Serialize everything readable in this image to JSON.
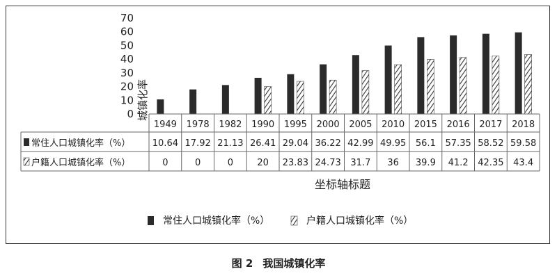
{
  "caption": {
    "number": "图 2",
    "text": "我国城镇化率"
  },
  "chart_data": {
    "type": "bar",
    "title": "",
    "ylabel": "城镇化率",
    "xlabel": "坐标轴标题",
    "ylim": [
      0,
      70
    ],
    "yticks": [
      0,
      10,
      20,
      30,
      40,
      50,
      60,
      70
    ],
    "grid": false,
    "legend_position": "bottom",
    "categories": [
      "1949",
      "1978",
      "1982",
      "1990",
      "1995",
      "2000",
      "2005",
      "2010",
      "2015",
      "2016",
      "2017",
      "2018"
    ],
    "series": [
      {
        "name": "常住人口城镇化率（%）",
        "display_values": [
          "10.64",
          "17.92",
          "21.13",
          "26.41",
          "29.04",
          "36.22",
          "42.99",
          "49.95",
          "56.1",
          "57.35",
          "58.52",
          "59.58"
        ],
        "values": [
          10.64,
          17.92,
          21.13,
          26.41,
          29.04,
          36.22,
          42.99,
          49.95,
          56.1,
          57.35,
          58.52,
          59.58
        ],
        "fill": "solid",
        "color": "#2b2b2b"
      },
      {
        "name": "户籍人口城镇化率（%）",
        "display_values": [
          "0",
          "0",
          "0",
          "20",
          "23.83",
          "24.73",
          "31.7",
          "36",
          "39.9",
          "41.2",
          "42.35",
          "43.4"
        ],
        "values": [
          0,
          0,
          0,
          20,
          23.83,
          24.73,
          31.7,
          36,
          39.9,
          41.2,
          42.35,
          43.4
        ],
        "fill": "hatched",
        "color": "#2b2b2b"
      }
    ]
  }
}
